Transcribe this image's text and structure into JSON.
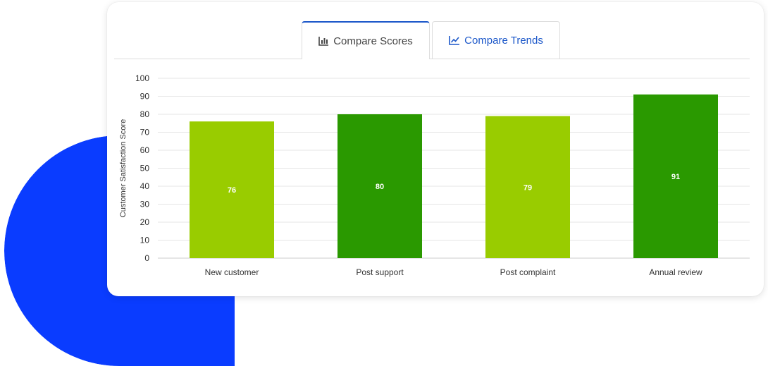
{
  "tabs": [
    {
      "label": "Compare Scores",
      "icon": "bar-chart-icon",
      "active": true
    },
    {
      "label": "Compare Trends",
      "icon": "line-chart-icon",
      "active": false
    }
  ],
  "colors": {
    "blob": "#0a3cff",
    "accent": "#1b57c9",
    "bar_light": "#99cc00",
    "bar_dark": "#2a9900",
    "grid": "#e6e6e6"
  },
  "chart_data": {
    "type": "bar",
    "categories": [
      "New customer",
      "Post support",
      "Post complaint",
      "Annual review"
    ],
    "values": [
      76,
      80,
      79,
      91
    ],
    "bar_colors": [
      "#99cc00",
      "#2a9900",
      "#99cc00",
      "#2a9900"
    ],
    "ylabel": "Customer Satisfaction Score",
    "xlabel": "",
    "ylim": [
      0,
      100
    ],
    "yticks": [
      0,
      10,
      20,
      30,
      40,
      50,
      60,
      70,
      80,
      90,
      100
    ],
    "grid": true,
    "data_labels": true
  }
}
